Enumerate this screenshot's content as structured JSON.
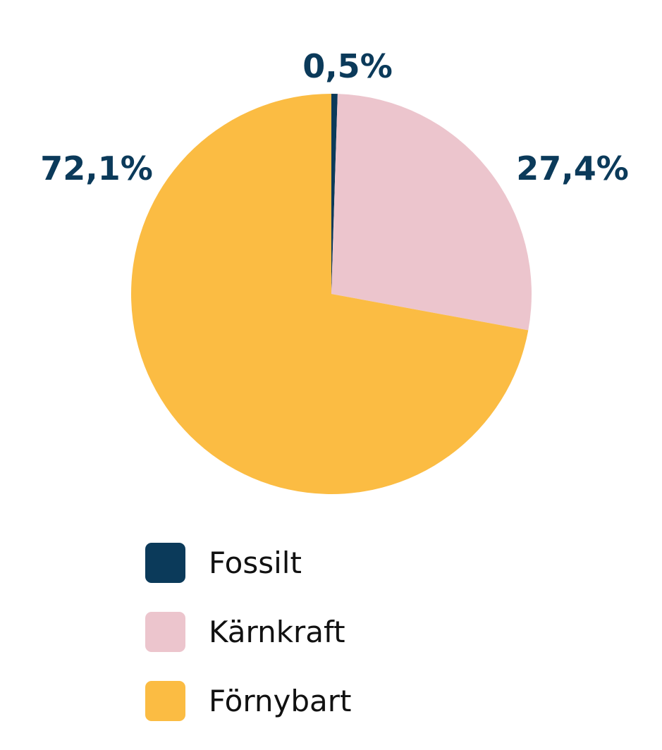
{
  "chart_data": {
    "type": "pie",
    "title": "",
    "slices": [
      {
        "label": "Fossilt",
        "value": 0.5,
        "value_label": "0,5%",
        "color": "#0b3a5a"
      },
      {
        "label": "Kärnkraft",
        "value": 27.4,
        "value_label": "27,4%",
        "color": "#ecc5cd"
      },
      {
        "label": "Förnybart",
        "value": 72.1,
        "value_label": "72,1%",
        "color": "#fbbc43"
      }
    ],
    "start": "12 o'clock",
    "direction": "clockwise",
    "legend_placement": "bottom",
    "label_color": "#0b3a5a"
  }
}
